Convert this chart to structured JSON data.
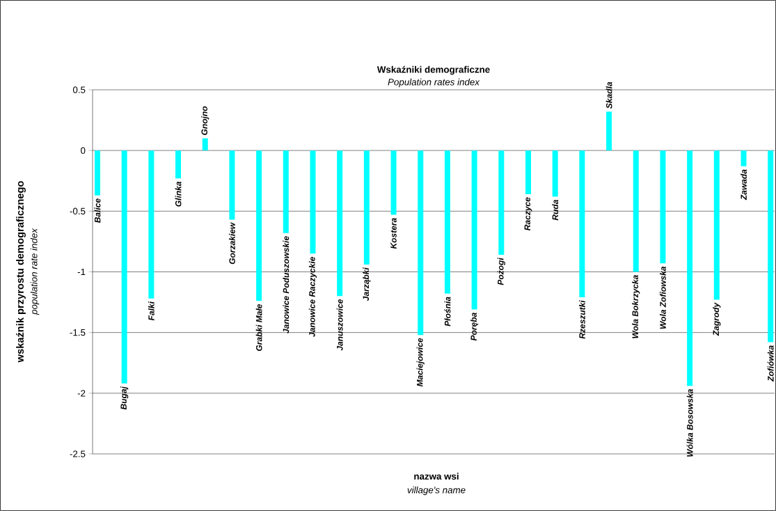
{
  "chart_data": {
    "type": "bar",
    "title": "Wskaźniki demograficzne",
    "subtitle": "Population rates index",
    "xlabel": "nazwa wsi",
    "annotations": [
      "village's name",
      "population rate index"
    ],
    "ylabel": "wskaźnik przyrostu demograficznego",
    "categories": [
      "Balice",
      "Bugaj",
      "Falki",
      "Glinka",
      "Gnojno",
      "Gorzakiew",
      "Grabki Małe",
      "Janowice Poduszowskie",
      "Janowice Raczyckie",
      "Januszowice",
      "Jarząbki",
      "Kostera",
      "Maciejowice",
      "Płośnia",
      "Poręba",
      "Pożogi",
      "Raczyce",
      "Ruda",
      "Rzeszutki",
      "Skadla",
      "Wola Bokrzycka",
      "Wola Zofiowska",
      "Wólka Bosowska",
      "Zagrody",
      "Zawada",
      "Zofiówka"
    ],
    "values": [
      -0.37,
      -1.92,
      -1.22,
      -0.23,
      0.1,
      -0.57,
      -1.24,
      -0.68,
      -0.85,
      -1.2,
      -0.94,
      -0.53,
      -1.52,
      -1.18,
      -1.31,
      -0.86,
      -0.36,
      -0.38,
      -1.21,
      0.32,
      -1.0,
      -0.93,
      -1.94,
      -1.23,
      -0.13,
      -1.58
    ],
    "color": "#00ffff",
    "ylim": [
      -2.5,
      0.5
    ],
    "yticks": [
      -2.5,
      -2,
      -1.5,
      -1,
      -0.5,
      0,
      0.5
    ],
    "grid": "y"
  }
}
